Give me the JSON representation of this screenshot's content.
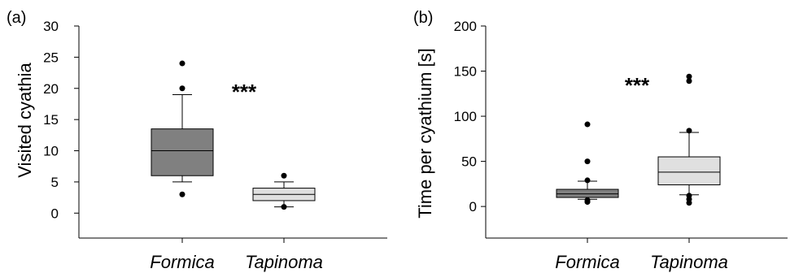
{
  "chart_data": [
    {
      "type": "box",
      "panel_label": "(a)",
      "ylabel": "Visited cyathia",
      "ylim": [
        -4,
        30
      ],
      "yticks": [
        0,
        5,
        10,
        15,
        20,
        25,
        30
      ],
      "categories": [
        "Formica",
        "Tapinoma"
      ],
      "significance": "***",
      "boxes": [
        {
          "category": "Formica",
          "fill": "#808080",
          "whisker_low": 5,
          "q1": 6,
          "median": 10,
          "q3": 13.5,
          "whisker_high": 19,
          "outliers": [
            3,
            20,
            24
          ]
        },
        {
          "category": "Tapinoma",
          "fill": "#e0e0e0",
          "whisker_low": 1,
          "q1": 2,
          "median": 3,
          "q3": 4,
          "whisker_high": 5,
          "outliers": [
            1,
            6
          ]
        }
      ]
    },
    {
      "type": "box",
      "panel_label": "(b)",
      "ylabel": "Time per cyathium [s]",
      "ylim": [
        -35,
        200
      ],
      "yticks": [
        0,
        50,
        100,
        150,
        200
      ],
      "categories": [
        "Formica",
        "Tapinoma"
      ],
      "significance": "***",
      "boxes": [
        {
          "category": "Formica",
          "fill": "#808080",
          "whisker_low": 8,
          "q1": 10,
          "median": 14,
          "q3": 19,
          "whisker_high": 28,
          "outliers": [
            5,
            7,
            29,
            50,
            91
          ]
        },
        {
          "category": "Tapinoma",
          "fill": "#e0e0e0",
          "whisker_low": 13,
          "q1": 24,
          "median": 38,
          "q3": 55,
          "whisker_high": 82,
          "outliers": [
            4,
            8,
            12,
            84,
            139,
            144
          ]
        }
      ]
    }
  ]
}
